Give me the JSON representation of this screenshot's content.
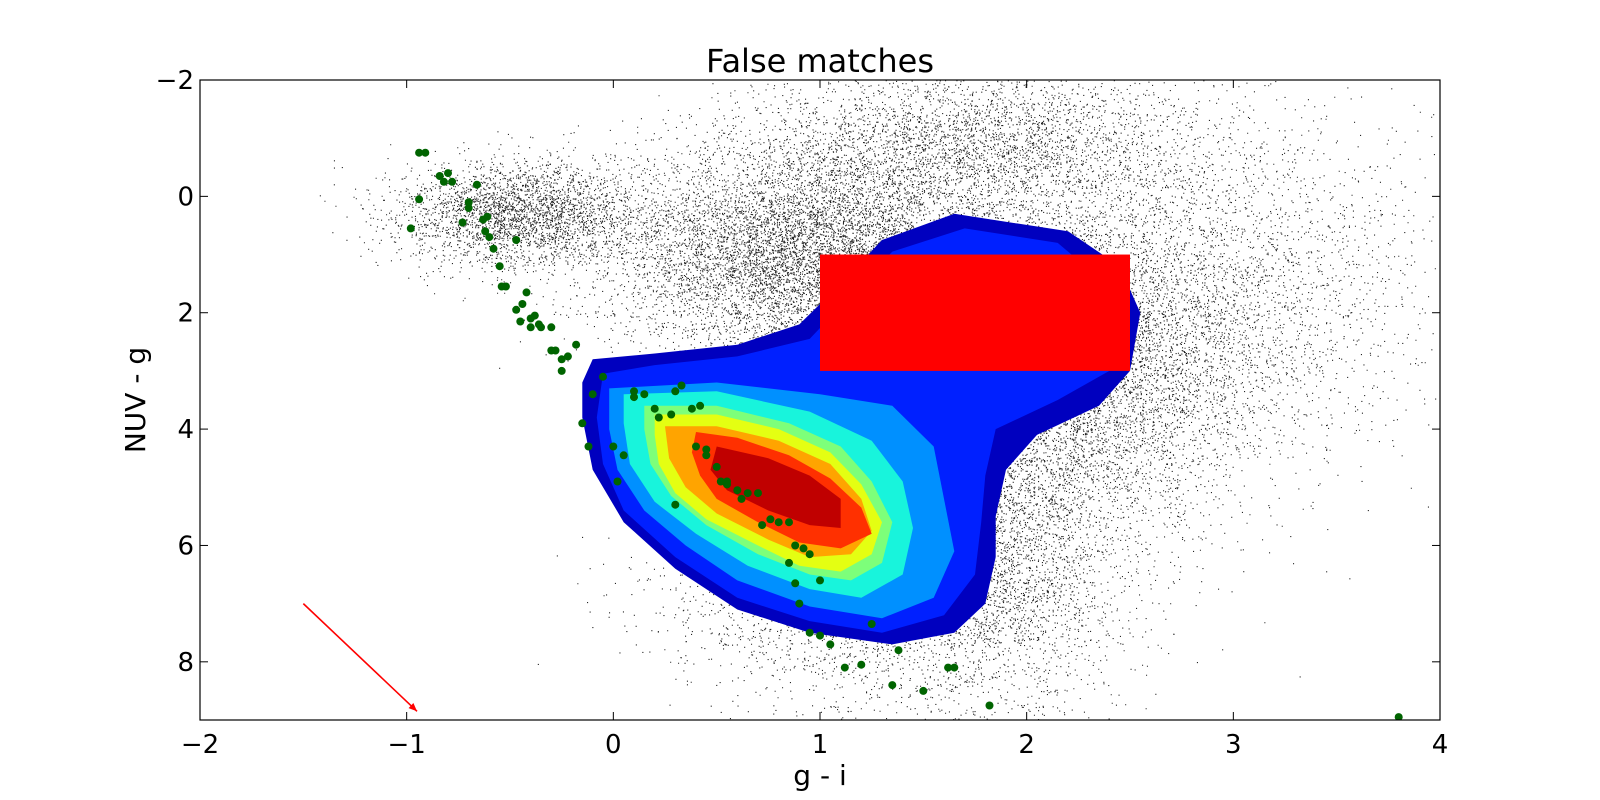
{
  "chart_data": {
    "type": "scatter",
    "title": "False matches",
    "xlabel": "g - i",
    "ylabel": "NUV - g",
    "xlim": [
      -2,
      4
    ],
    "ylim": [
      9,
      -2
    ],
    "y_axis_inverted": true,
    "grid": false,
    "xticks": [
      -2,
      -1,
      0,
      1,
      2,
      3,
      4
    ],
    "yticks": [
      -2,
      0,
      2,
      4,
      6,
      8
    ],
    "xtick_labels": [
      "−2",
      "−1",
      "0",
      "1",
      "2",
      "3",
      "4"
    ],
    "ytick_labels": [
      "−2",
      "0",
      "2",
      "4",
      "6",
      "8"
    ],
    "colors": {
      "background_points": "#000000",
      "stellar_locus_points": "#006400",
      "selection_box": "#ff0000",
      "arrow": "#ff0000",
      "contour_levels": [
        "#0000bf",
        "#0020ff",
        "#0090ff",
        "#18f4dc",
        "#7dff7a",
        "#e4ff12",
        "#ffa400",
        "#ff3000",
        "#c00000"
      ]
    },
    "selection_box": {
      "x": [
        1.0,
        2.5
      ],
      "y": [
        1.0,
        3.0
      ]
    },
    "arrow": {
      "x_start": -1.5,
      "y_start": 7.0,
      "x_end": -0.95,
      "y_end": 8.85
    },
    "density_contours": [
      {
        "level": 1,
        "color": "#0000bf",
        "path": [
          [
            1.65,
            0.3
          ],
          [
            2.2,
            0.6
          ],
          [
            2.45,
            1.2
          ],
          [
            2.55,
            2.0
          ],
          [
            2.5,
            3.0
          ],
          [
            2.35,
            3.6
          ],
          [
            2.05,
            4.1
          ],
          [
            1.9,
            4.7
          ],
          [
            1.85,
            5.5
          ],
          [
            1.85,
            6.2
          ],
          [
            1.8,
            7.0
          ],
          [
            1.65,
            7.5
          ],
          [
            1.35,
            7.7
          ],
          [
            0.95,
            7.5
          ],
          [
            0.6,
            7.1
          ],
          [
            0.3,
            6.4
          ],
          [
            0.05,
            5.6
          ],
          [
            -0.1,
            4.7
          ],
          [
            -0.15,
            3.8
          ],
          [
            -0.15,
            3.2
          ],
          [
            -0.1,
            2.8
          ],
          [
            0.2,
            2.7
          ],
          [
            0.6,
            2.55
          ],
          [
            0.9,
            2.2
          ],
          [
            1.1,
            1.5
          ],
          [
            1.3,
            0.75
          ]
        ]
      },
      {
        "level": 2,
        "color": "#0020ff",
        "path": [
          [
            1.7,
            0.55
          ],
          [
            2.15,
            0.8
          ],
          [
            2.35,
            1.4
          ],
          [
            2.45,
            2.2
          ],
          [
            2.4,
            3.0
          ],
          [
            2.15,
            3.5
          ],
          [
            1.85,
            4.0
          ],
          [
            1.8,
            4.8
          ],
          [
            1.78,
            5.6
          ],
          [
            1.75,
            6.5
          ],
          [
            1.6,
            7.2
          ],
          [
            1.3,
            7.5
          ],
          [
            0.95,
            7.3
          ],
          [
            0.6,
            6.9
          ],
          [
            0.3,
            6.2
          ],
          [
            0.05,
            5.4
          ],
          [
            -0.05,
            4.6
          ],
          [
            -0.08,
            3.8
          ],
          [
            -0.05,
            3.05
          ],
          [
            0.2,
            2.9
          ],
          [
            0.6,
            2.75
          ],
          [
            0.95,
            2.45
          ],
          [
            1.15,
            1.7
          ],
          [
            1.35,
            0.95
          ]
        ]
      },
      {
        "level": 3,
        "color": "#0090ff",
        "path": [
          [
            -0.02,
            3.3
          ],
          [
            0.5,
            3.2
          ],
          [
            1.0,
            3.4
          ],
          [
            1.35,
            3.6
          ],
          [
            1.55,
            4.3
          ],
          [
            1.6,
            5.2
          ],
          [
            1.65,
            6.1
          ],
          [
            1.55,
            6.9
          ],
          [
            1.3,
            7.25
          ],
          [
            0.95,
            7.05
          ],
          [
            0.6,
            6.6
          ],
          [
            0.35,
            6.0
          ],
          [
            0.15,
            5.4
          ],
          [
            0.02,
            4.7
          ],
          [
            -0.02,
            4.0
          ]
        ]
      },
      {
        "level": 4,
        "color": "#18f4dc",
        "path": [
          [
            0.05,
            3.4
          ],
          [
            0.5,
            3.35
          ],
          [
            0.95,
            3.7
          ],
          [
            1.25,
            4.2
          ],
          [
            1.4,
            4.9
          ],
          [
            1.45,
            5.7
          ],
          [
            1.4,
            6.5
          ],
          [
            1.2,
            6.9
          ],
          [
            0.95,
            6.75
          ],
          [
            0.65,
            6.35
          ],
          [
            0.4,
            5.8
          ],
          [
            0.2,
            5.25
          ],
          [
            0.08,
            4.6
          ],
          [
            0.05,
            3.9
          ]
        ]
      },
      {
        "level": 5,
        "color": "#7dff7a",
        "path": [
          [
            0.15,
            3.6
          ],
          [
            0.5,
            3.6
          ],
          [
            0.85,
            3.9
          ],
          [
            1.1,
            4.3
          ],
          [
            1.25,
            4.9
          ],
          [
            1.35,
            5.6
          ],
          [
            1.3,
            6.3
          ],
          [
            1.15,
            6.6
          ],
          [
            0.95,
            6.5
          ],
          [
            0.7,
            6.15
          ],
          [
            0.45,
            5.65
          ],
          [
            0.28,
            5.15
          ],
          [
            0.18,
            4.6
          ],
          [
            0.15,
            4.0
          ]
        ]
      },
      {
        "level": 6,
        "color": "#e4ff12",
        "path": [
          [
            0.2,
            3.75
          ],
          [
            0.5,
            3.75
          ],
          [
            0.8,
            4.0
          ],
          [
            1.05,
            4.4
          ],
          [
            1.2,
            4.95
          ],
          [
            1.3,
            5.6
          ],
          [
            1.25,
            6.15
          ],
          [
            1.1,
            6.45
          ],
          [
            0.9,
            6.35
          ],
          [
            0.7,
            6.0
          ],
          [
            0.45,
            5.55
          ],
          [
            0.3,
            5.1
          ],
          [
            0.22,
            4.6
          ],
          [
            0.2,
            4.1
          ]
        ]
      },
      {
        "level": 7,
        "color": "#ffa400",
        "path": [
          [
            0.25,
            3.95
          ],
          [
            0.5,
            3.95
          ],
          [
            0.8,
            4.2
          ],
          [
            1.05,
            4.6
          ],
          [
            1.2,
            5.2
          ],
          [
            1.25,
            5.75
          ],
          [
            1.15,
            6.15
          ],
          [
            0.95,
            6.2
          ],
          [
            0.75,
            5.9
          ],
          [
            0.5,
            5.45
          ],
          [
            0.35,
            5.0
          ],
          [
            0.27,
            4.5
          ]
        ]
      },
      {
        "level": 8,
        "color": "#ff3000",
        "path": [
          [
            0.4,
            4.05
          ],
          [
            0.6,
            4.15
          ],
          [
            0.85,
            4.45
          ],
          [
            1.05,
            4.85
          ],
          [
            1.2,
            5.35
          ],
          [
            1.25,
            5.8
          ],
          [
            1.1,
            6.05
          ],
          [
            0.9,
            5.95
          ],
          [
            0.7,
            5.6
          ],
          [
            0.5,
            5.2
          ],
          [
            0.42,
            4.8
          ],
          [
            0.38,
            4.4
          ]
        ]
      },
      {
        "level": 9,
        "color": "#c00000",
        "path": [
          [
            0.5,
            4.3
          ],
          [
            0.75,
            4.5
          ],
          [
            0.95,
            4.8
          ],
          [
            1.1,
            5.2
          ],
          [
            1.1,
            5.7
          ],
          [
            0.95,
            5.65
          ],
          [
            0.75,
            5.4
          ],
          [
            0.55,
            5.05
          ],
          [
            0.47,
            4.7
          ]
        ]
      }
    ],
    "stellar_locus_points": {
      "x": [
        -0.94,
        -0.91,
        -0.94,
        -0.98,
        -0.84,
        -0.82,
        -0.8,
        -0.78,
        -0.73,
        -0.7,
        -0.7,
        -0.66,
        -0.63,
        -0.6,
        -0.62,
        -0.61,
        -0.58,
        -0.55,
        -0.54,
        -0.52,
        -0.47,
        -0.45,
        -0.42,
        -0.44,
        -0.47,
        -0.4,
        -0.38,
        -0.36,
        -0.3,
        -0.28,
        -0.25,
        -0.22,
        -0.18,
        -0.15,
        -0.12,
        -0.1,
        -0.05,
        0.02,
        0.1,
        0.1,
        0.15,
        0.2,
        0.22,
        0.28,
        0.3,
        0.33,
        0.38,
        0.42,
        0.45,
        0.5,
        0.52,
        0.55,
        0.6,
        0.62,
        0.65,
        0.7,
        0.72,
        0.76,
        0.8,
        0.85,
        0.88,
        0.92,
        0.95,
        1.0,
        0.85,
        0.88,
        0.9,
        0.95,
        1.0,
        1.05,
        1.12,
        1.2,
        1.25,
        1.35,
        1.38,
        1.5,
        1.62,
        1.65,
        1.82,
        3.8,
        -0.4,
        -0.3,
        -0.35,
        -0.25,
        0.0,
        0.05,
        0.45,
        0.4,
        0.3,
        0.55
      ],
      "y": [
        -0.75,
        -0.75,
        0.05,
        0.55,
        -0.35,
        -0.25,
        -0.4,
        -0.25,
        0.45,
        0.2,
        0.1,
        -0.2,
        0.4,
        0.7,
        0.6,
        0.35,
        0.9,
        1.2,
        1.55,
        1.55,
        1.95,
        2.15,
        1.65,
        1.85,
        0.75,
        2.25,
        2.05,
        2.2,
        2.25,
        2.65,
        2.8,
        2.75,
        2.55,
        3.9,
        4.3,
        3.4,
        3.1,
        4.9,
        3.45,
        3.35,
        3.4,
        3.65,
        3.8,
        3.75,
        3.35,
        3.25,
        3.65,
        3.6,
        4.45,
        4.65,
        4.9,
        4.95,
        5.05,
        5.2,
        5.1,
        5.1,
        5.65,
        5.55,
        5.6,
        5.6,
        6.0,
        6.05,
        6.15,
        6.6,
        6.3,
        6.65,
        7.0,
        7.5,
        7.55,
        7.7,
        8.1,
        8.05,
        7.35,
        8.4,
        7.8,
        8.5,
        8.1,
        8.1,
        8.75,
        8.95,
        2.1,
        2.65,
        2.25,
        3.0,
        4.3,
        4.45,
        4.35,
        4.3,
        5.3,
        4.9
      ]
    },
    "background_points": {
      "description_free_counts_only": true,
      "clusters": [
        {
          "x_mean": 0.9,
          "y_mean": 1.0,
          "x_sd": 0.45,
          "y_sd": 0.9,
          "share": 0.26
        },
        {
          "x_mean": 2.2,
          "y_mean": 3.0,
          "x_sd": 0.45,
          "y_sd": 1.4,
          "share": 0.24
        },
        {
          "x_mean": 1.7,
          "y_mean": -0.9,
          "x_sd": 0.55,
          "y_sd": 0.7,
          "share": 0.12
        },
        {
          "x_mean": -0.45,
          "y_mean": 0.3,
          "x_sd": 0.3,
          "y_sd": 0.45,
          "share": 0.1
        },
        {
          "x_mean": 1.8,
          "y_mean": 6.4,
          "x_sd": 0.35,
          "y_sd": 1.2,
          "share": 0.12
        },
        {
          "x_mean": 2.9,
          "y_mean": 1.5,
          "x_sd": 0.55,
          "y_sd": 1.6,
          "share": 0.1
        },
        {
          "x_mean": 1.0,
          "y_mean": 6.8,
          "x_sd": 0.4,
          "y_sd": 0.9,
          "share": 0.06
        }
      ]
    }
  }
}
